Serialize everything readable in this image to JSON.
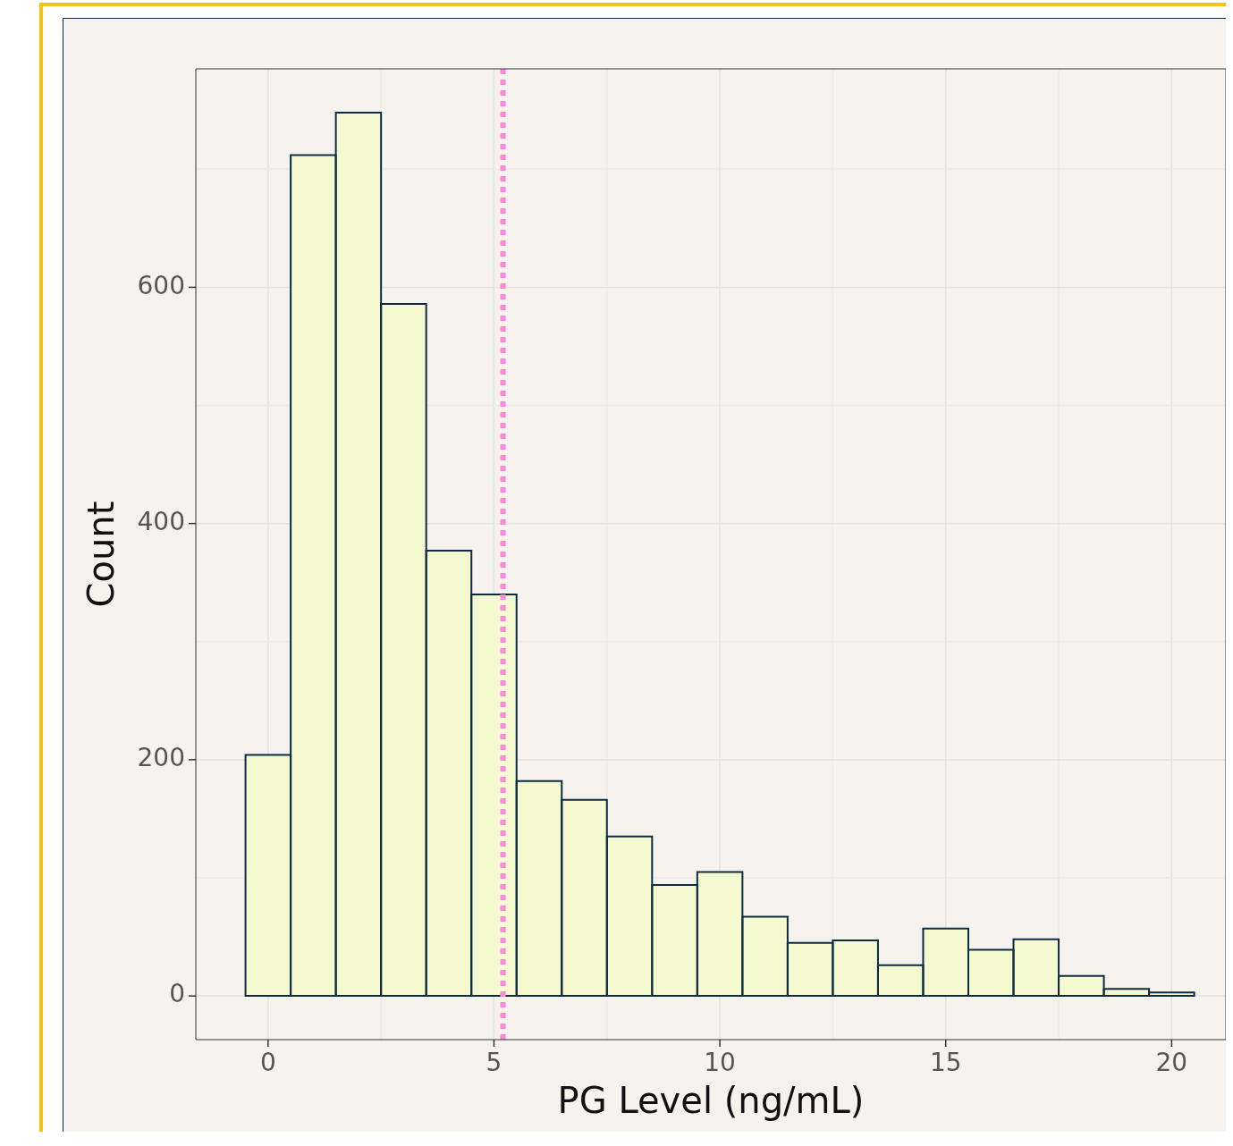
{
  "chart_data": {
    "type": "histogram",
    "xlabel": "PG Level (ng/mL)",
    "ylabel": "Count",
    "bins": [
      -0.5,
      0.5,
      1.5,
      2.5,
      3.5,
      4.5,
      5.5,
      6.5,
      7.5,
      8.5,
      9.5,
      10.5,
      11.5,
      12.5,
      13.5,
      14.5,
      15.5,
      16.5,
      17.5,
      18.5,
      19.5,
      20.5
    ],
    "values": [
      204,
      712,
      748,
      586,
      377,
      340,
      182,
      166,
      135,
      94,
      105,
      67,
      45,
      47,
      26,
      57,
      39,
      48,
      17,
      6,
      3
    ],
    "color": "#f5f9d0",
    "xlim": [
      -1.6,
      21.2
    ],
    "ylim": [
      -37,
      785
    ],
    "xticks": [
      0,
      {
        "value": 2.5,
        "label": null
      },
      5,
      {
        "value": 7.5,
        "label": null
      },
      10,
      {
        "value": 12.5,
        "label": null
      },
      15,
      {
        "value": 17.5,
        "label": null
      },
      20
    ],
    "yticks": [
      0,
      {
        "value": 100,
        "label": null
      },
      200,
      {
        "value": 300,
        "label": null
      },
      400,
      {
        "value": 500,
        "label": null
      },
      600,
      {
        "value": 700,
        "label": null
      }
    ],
    "ref_lines": [
      {
        "axis": "x",
        "value": 5.2,
        "color": "#ff88dd",
        "line_style": "dotted"
      }
    ],
    "grid": true,
    "legend": false
  }
}
